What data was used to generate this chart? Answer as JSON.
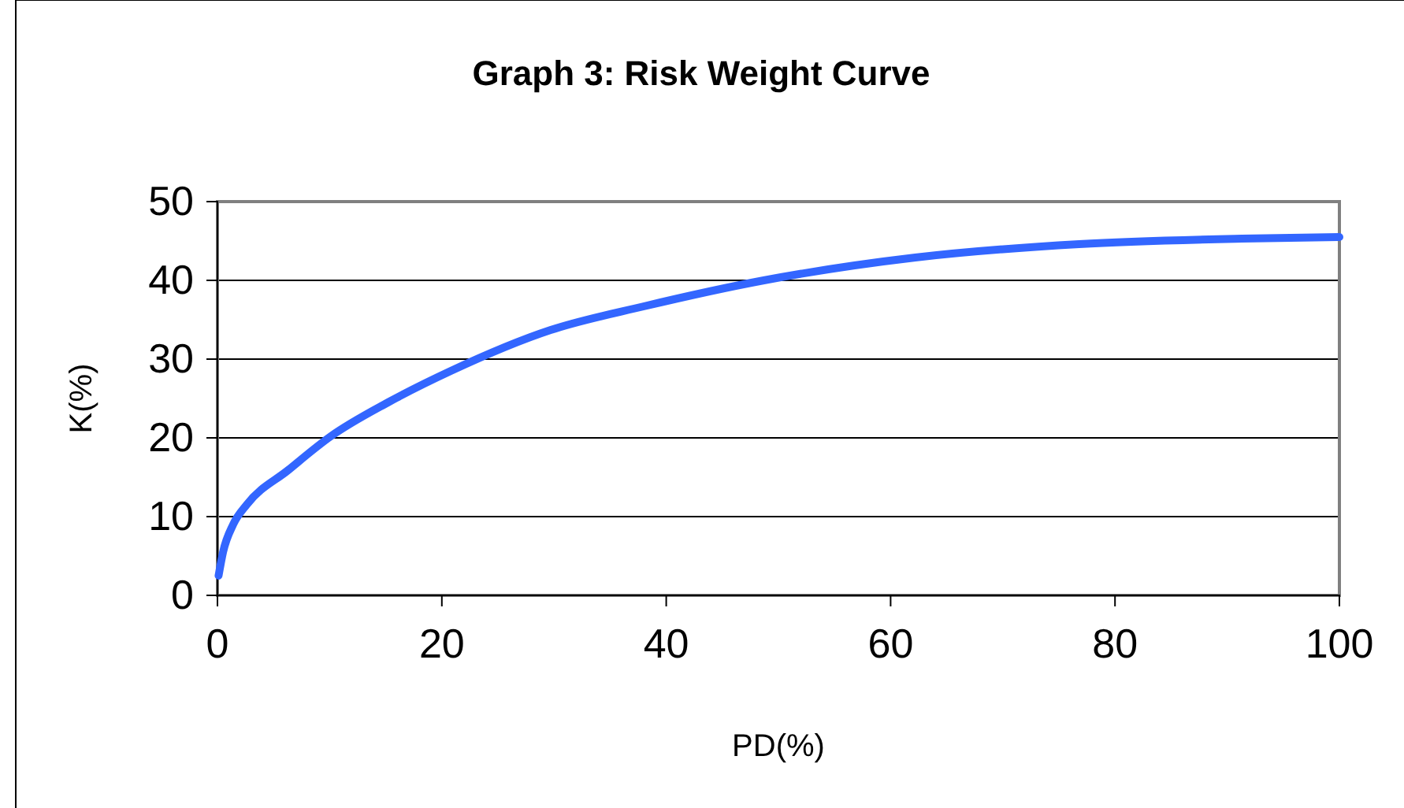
{
  "chart_data": {
    "type": "line",
    "title": "Graph 3: Risk Weight Curve",
    "xlabel": "PD(%)",
    "ylabel": "K(%)",
    "x": [
      0.1,
      0.5,
      1.4,
      2.6,
      6.3,
      10.1,
      15.2,
      20.8,
      29.7,
      38,
      48.7,
      62.2,
      76.8,
      91.3,
      100
    ],
    "series": [
      {
        "color": "#3366ff",
        "values": [
          2.5,
          5.5,
          9,
          11.5,
          15.9,
          20.2,
          24.5,
          28.5,
          33.7,
          36.7,
          40,
          42.9,
          44.6,
          45.3,
          45.5
        ]
      }
    ],
    "xlim": [
      0,
      100
    ],
    "xticks": [
      0,
      20,
      40,
      60,
      80,
      100
    ],
    "ylim": [
      0,
      50
    ],
    "yticks": [
      0,
      10,
      20,
      30,
      40,
      50
    ],
    "grid": "y",
    "marker": "none",
    "line_style": "solid"
  }
}
